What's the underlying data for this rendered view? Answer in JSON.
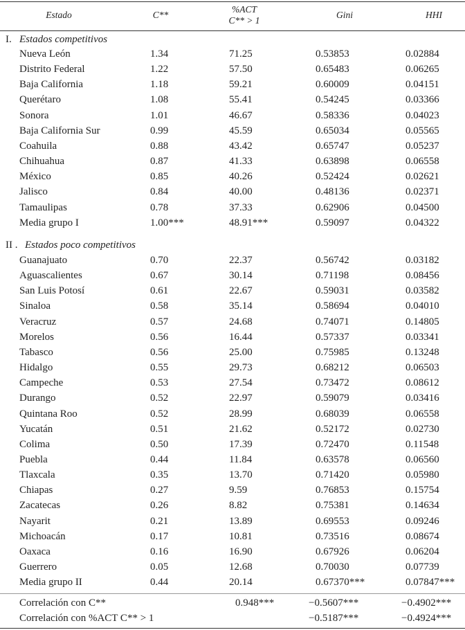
{
  "header": [
    [
      "Estado"
    ],
    [
      "C**"
    ],
    [
      "%ACT",
      "C** > 1"
    ],
    [
      "Gini"
    ],
    [
      "HHI"
    ]
  ],
  "sections": [
    {
      "number": "I.",
      "title": "Estados competitivos",
      "rows": [
        [
          "Nueva León",
          "1.34",
          "71.25",
          "0.53853",
          "0.02884"
        ],
        [
          "Distrito Federal",
          "1.22",
          "57.50",
          "0.65483",
          "0.06265"
        ],
        [
          "Baja California",
          "1.18",
          "59.21",
          "0.60009",
          "0.04151"
        ],
        [
          "Querétaro",
          "1.08",
          "55.41",
          "0.54245",
          "0.03366"
        ],
        [
          "Sonora",
          "1.01",
          "46.67",
          "0.58336",
          "0.04023"
        ],
        [
          "Baja California Sur",
          "0.99",
          "45.59",
          "0.65034",
          "0.05565"
        ],
        [
          "Coahuila",
          "0.88",
          "43.42",
          "0.65747",
          "0.05237"
        ],
        [
          "Chihuahua",
          "0.87",
          "41.33",
          "0.63898",
          "0.06558"
        ],
        [
          "México",
          "0.85",
          "40.26",
          "0.52424",
          "0.02621"
        ],
        [
          "Jalisco",
          "0.84",
          "40.00",
          "0.48136",
          "0.02371"
        ],
        [
          "Tamaulipas",
          "0.78",
          "37.33",
          "0.62906",
          "0.04500"
        ],
        [
          "Media grupo I",
          "1.00***",
          "48.91***",
          "0.59097",
          "0.04322"
        ]
      ]
    },
    {
      "number": "II .",
      "title": "Estados poco competitivos",
      "rows": [
        [
          "Guanajuato",
          "0.70",
          "22.37",
          "0.56742",
          "0.03182"
        ],
        [
          "Aguascalientes",
          "0.67",
          "30.14",
          "0.71198",
          "0.08456"
        ],
        [
          "San Luis Potosí",
          "0.61",
          "22.67",
          "0.59031",
          "0.03582"
        ],
        [
          "Sinaloa",
          "0.58",
          "35.14",
          "0.58694",
          "0.04010"
        ],
        [
          "Veracruz",
          "0.57",
          "24.68",
          "0.74071",
          "0.14805"
        ],
        [
          "Morelos",
          "0.56",
          "16.44",
          "0.57337",
          "0.03341"
        ],
        [
          "Tabasco",
          "0.56",
          "25.00",
          "0.75985",
          "0.13248"
        ],
        [
          "Hidalgo",
          "0.55",
          "29.73",
          "0.68212",
          "0.06503"
        ],
        [
          "Campeche",
          "0.53",
          "27.54",
          "0.73472",
          "0.08612"
        ],
        [
          "Durango",
          "0.52",
          "22.97",
          "0.59079",
          "0.03416"
        ],
        [
          "Quintana Roo",
          "0.52",
          "28.99",
          "0.68039",
          "0.06558"
        ],
        [
          "Yucatán",
          "0.51",
          "21.62",
          "0.52172",
          "0.02730"
        ],
        [
          "Colima",
          "0.50",
          "17.39",
          "0.72470",
          "0.11548"
        ],
        [
          "Puebla",
          "0.44",
          "11.84",
          "0.63578",
          "0.06560"
        ],
        [
          "Tlaxcala",
          "0.35",
          "13.70",
          "0.71420",
          "0.05980"
        ],
        [
          "Chiapas",
          "0.27",
          "9.59",
          "0.76853",
          "0.15754"
        ],
        [
          "Zacatecas",
          "0.26",
          "8.82",
          "0.75381",
          "0.14634"
        ],
        [
          "Nayarit",
          "0.21",
          "13.89",
          "0.69553",
          "0.09246"
        ],
        [
          "Michoacán",
          "0.17",
          "10.81",
          "0.73516",
          "0.08674"
        ],
        [
          "Oaxaca",
          "0.16",
          "16.90",
          "0.67926",
          "0.06204"
        ],
        [
          "Guerrero",
          "0.05",
          "12.68",
          "0.70030",
          "0.07739"
        ],
        [
          "Media grupo II",
          "0.44",
          "20.14",
          "0.67370***",
          "0.07847***"
        ]
      ]
    }
  ],
  "correlations": [
    {
      "label": "Correlación con C**",
      "act": "0.948***",
      "gini": "−0.5607***",
      "hhi": "−0.4902***"
    },
    {
      "label": "Correlación con %ACT C** > 1",
      "gini": "−0.5187***",
      "hhi": "−0.4924***"
    }
  ]
}
